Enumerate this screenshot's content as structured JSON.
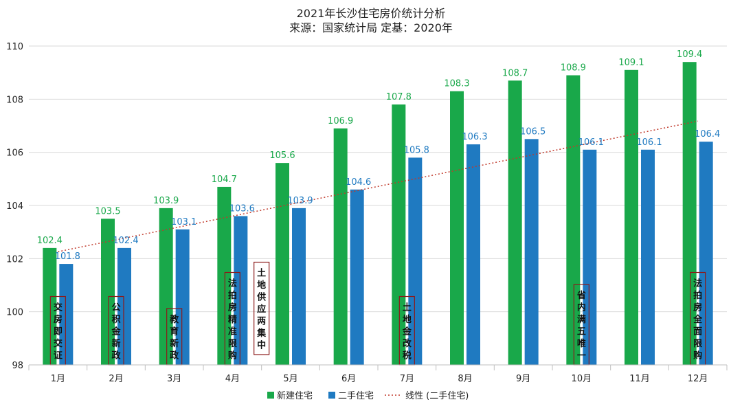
{
  "chart_data": {
    "type": "bar",
    "title": "2021年长沙住宅房价统计分析",
    "subtitle": "来源：国家统计局 定基：2020年",
    "categories": [
      "1月",
      "2月",
      "3月",
      "4月",
      "5月",
      "6月",
      "7月",
      "8月",
      "9月",
      "10月",
      "11月",
      "12月"
    ],
    "series": [
      {
        "name": "新建住宅",
        "color": "#19a84a",
        "values": [
          102.4,
          103.5,
          103.9,
          104.7,
          105.6,
          106.9,
          107.8,
          108.3,
          108.7,
          108.9,
          109.1,
          109.4
        ]
      },
      {
        "name": "二手住宅",
        "color": "#1f7ac1",
        "values": [
          101.8,
          102.4,
          103.1,
          103.6,
          103.9,
          104.6,
          105.8,
          106.3,
          106.5,
          106.1,
          106.1,
          106.4
        ]
      }
    ],
    "value_labels": {
      "new": [
        "102.4",
        "103.5",
        "103.9",
        "104.7",
        "105.6",
        "106.9",
        "107.8",
        "108.3",
        "108.7",
        "108.9",
        "109.1",
        "109.4"
      ],
      "used": [
        "101.8",
        "102.4",
        "103.1",
        "103.6",
        "103.9",
        "104.6",
        "105.8",
        "106.3",
        "106.5",
        "106.1",
        "106.1",
        "106.4"
      ]
    },
    "trendline": {
      "name": "线性 (二手住宅)",
      "color": "#c0392b",
      "style": "dotted"
    },
    "ylim": [
      98,
      110
    ],
    "yticks": [
      "98",
      "100",
      "102",
      "104",
      "106",
      "108",
      "110"
    ],
    "grid": true,
    "legend_position": "bottom-center",
    "legend": [
      "新建住宅",
      "二手住宅",
      "线性 (二手住宅)"
    ],
    "annotations": [
      {
        "text": "交房即交证",
        "month": 1
      },
      {
        "text": "公积金新政",
        "month": 2
      },
      {
        "text": "教育新政",
        "month": 3
      },
      {
        "text": "法拍房精准限购",
        "month": 4
      },
      {
        "text": "土地供应两集中",
        "month": 4.5
      },
      {
        "text": "土地金改税",
        "month": 7
      },
      {
        "text": "省内满五唯一",
        "month": 10
      },
      {
        "text": "法拍房全面限购",
        "month": 12
      }
    ]
  },
  "colors": {
    "annotation_border": "#8b1a1a",
    "grid": "#d9d9d9",
    "axis": "#bfbfbf"
  }
}
